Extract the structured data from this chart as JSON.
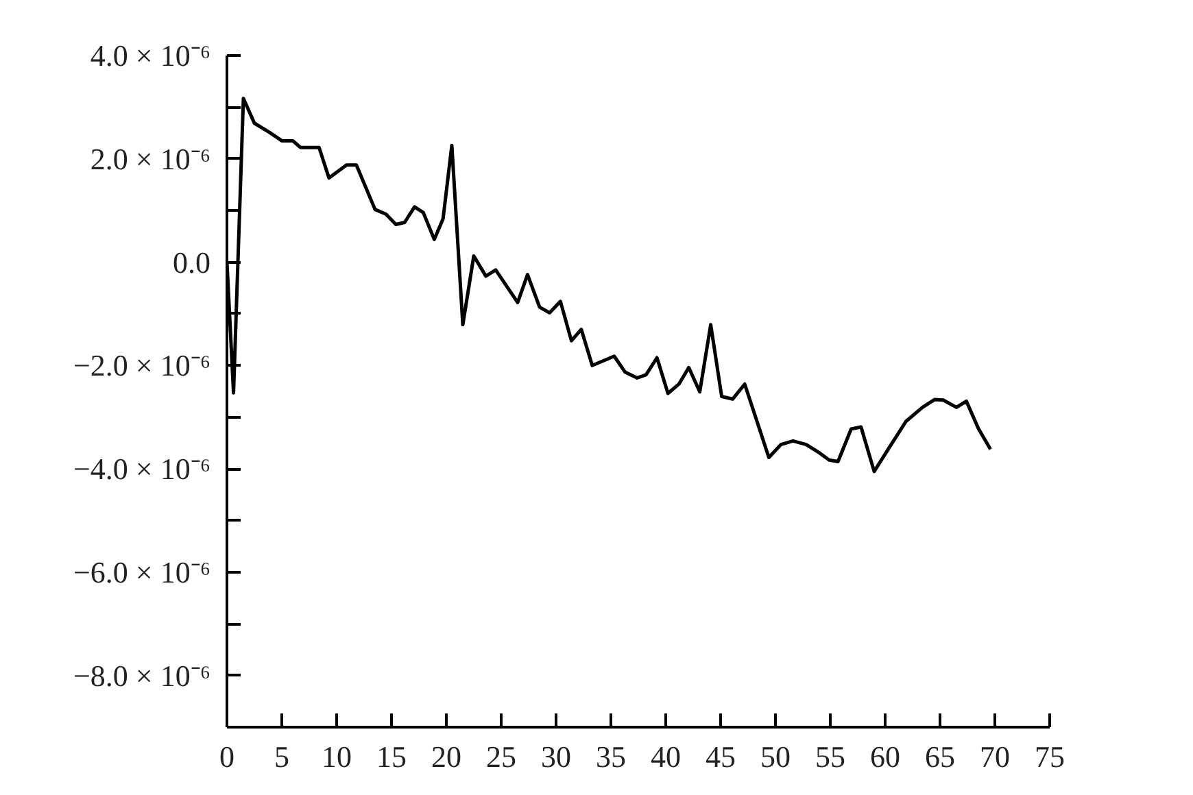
{
  "chart_data": {
    "type": "line",
    "color": "#000000",
    "grid": false,
    "marker": "none",
    "line_style": "solid",
    "x": [
      0,
      0.6,
      1.5,
      2.5,
      3.9,
      5.0,
      6.0,
      6.7,
      8.4,
      9.3,
      10.9,
      11.8,
      13.5,
      14.5,
      15.4,
      16.2,
      17.1,
      17.9,
      18.9,
      19.7,
      20.5,
      21.5,
      22.5,
      23.6,
      24.5,
      26.5,
      27.4,
      28.5,
      29.4,
      30.4,
      31.4,
      32.3,
      33.3,
      35.3,
      36.3,
      37.4,
      38.2,
      39.2,
      40.2,
      41.2,
      42.1,
      43.1,
      44.1,
      45.1,
      46.1,
      47.2,
      49.4,
      50.5,
      51.6,
      52.8,
      54.0,
      54.9,
      55.7,
      56.9,
      57.8,
      59.0,
      60.4,
      61.9,
      63.4,
      64.5,
      65.3,
      66.5,
      67.4,
      68.5,
      69.6
    ],
    "values": [
      0.0,
      -2.53e-06,
      3.17e-06,
      2.69e-06,
      2.51e-06,
      2.35e-06,
      2.35e-06,
      2.22e-06,
      2.22e-06,
      1.63e-06,
      1.88e-06,
      1.88e-06,
      1.02e-06,
      9.3e-07,
      7.3e-07,
      7.7e-07,
      1.07e-06,
      9.6e-07,
      4.4e-07,
      8.4e-07,
      2.26e-06,
      -1.21e-06,
      1.2e-07,
      -2.7e-07,
      -1.5e-07,
      -7.8e-07,
      -2.4e-07,
      -8.7e-07,
      -9.8e-07,
      -7.6e-07,
      -1.52e-06,
      -1.3e-06,
      -2e-06,
      -1.82e-06,
      -2.13e-06,
      -2.24e-06,
      -2.18e-06,
      -1.85e-06,
      -2.54e-06,
      -2.36e-06,
      -2.04e-06,
      -2.51e-06,
      -1.21e-06,
      -2.6e-06,
      -2.65e-06,
      -2.36e-06,
      -3.78e-06,
      -3.53e-06,
      -3.46e-06,
      -3.53e-06,
      -3.69e-06,
      -3.83e-06,
      -3.86e-06,
      -3.23e-06,
      -3.19e-06,
      -4.05e-06,
      -3.58e-06,
      -3.08e-06,
      -2.81e-06,
      -2.66e-06,
      -2.67e-06,
      -2.81e-06,
      -2.69e-06,
      -3.22e-06,
      -3.62e-06
    ],
    "xlim": [
      0,
      75
    ],
    "xticks": [
      0,
      5,
      10,
      15,
      20,
      25,
      30,
      35,
      40,
      45,
      50,
      55,
      60,
      65,
      70,
      75
    ],
    "ylim": [
      -9e-06,
      4e-06
    ],
    "yticks": [
      {
        "value": 4e-06,
        "label": "4.0 × 10⁻⁶"
      },
      {
        "value": 3e-06,
        "label": null
      },
      {
        "value": 2e-06,
        "label": "2.0 × 10⁻⁶"
      },
      {
        "value": 1e-06,
        "label": null
      },
      {
        "value": 0,
        "label": "0.0"
      },
      {
        "value": -1e-06,
        "label": null
      },
      {
        "value": -2e-06,
        "label": "−2.0 × 10⁻⁶"
      },
      {
        "value": -3e-06,
        "label": null
      },
      {
        "value": -4e-06,
        "label": "−4.0 × 10⁻⁶"
      },
      {
        "value": -5e-06,
        "label": null
      },
      {
        "value": -6e-06,
        "label": "−6.0 × 10⁻⁶"
      },
      {
        "value": -7e-06,
        "label": null
      },
      {
        "value": -8e-06,
        "label": "−8.0 × 10⁻⁶"
      }
    ]
  }
}
